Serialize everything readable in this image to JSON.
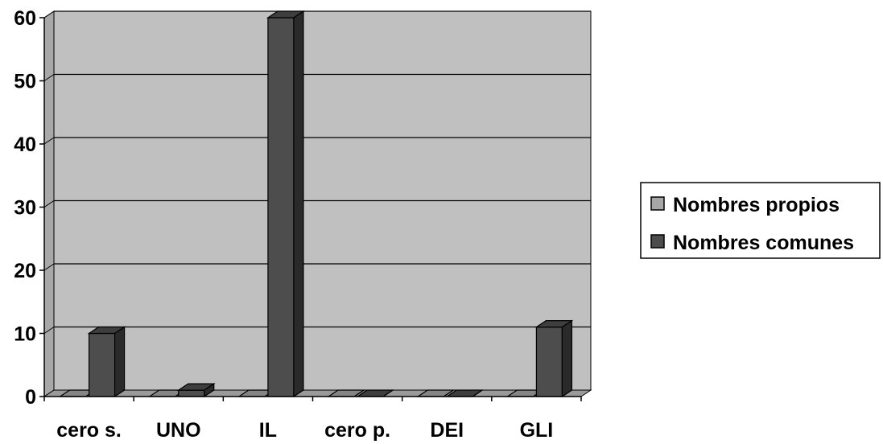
{
  "chart_data": {
    "type": "bar",
    "categories": [
      "cero s.",
      "UNO",
      "IL",
      "cero p.",
      "DEI",
      "GLI"
    ],
    "series": [
      {
        "name": "Nombres propios",
        "values": [
          0,
          0,
          0,
          0,
          0,
          0
        ],
        "color": "#a6a6a6"
      },
      {
        "name": "Nombres comunes",
        "values": [
          10,
          1,
          60,
          0,
          0,
          11
        ],
        "color": "#4d4d4d"
      }
    ],
    "ylim": [
      0,
      60
    ],
    "yticks": [
      0,
      10,
      20,
      30,
      40,
      50,
      60
    ],
    "grid": true,
    "legend_position": "right",
    "plot_background": "#c0c0c0",
    "style": "3d-column",
    "title": "",
    "xlabel": "",
    "ylabel": ""
  }
}
